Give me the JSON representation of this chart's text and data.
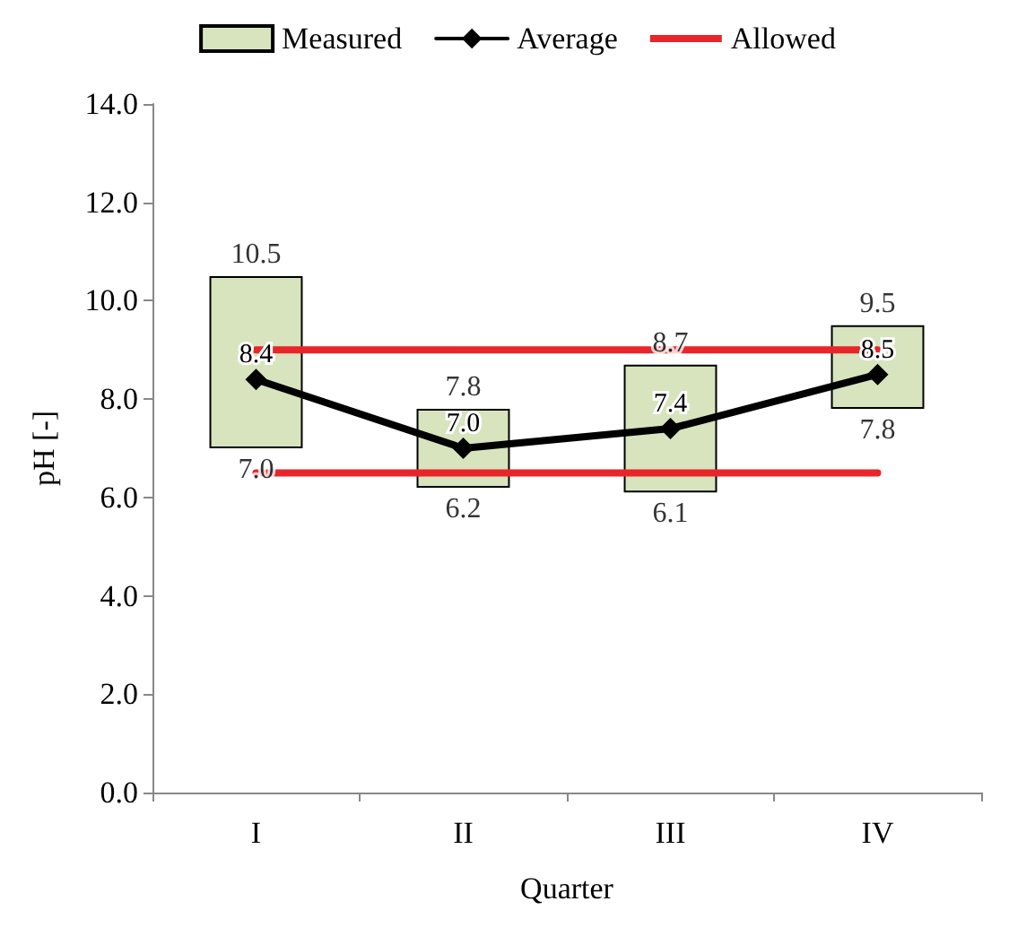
{
  "chart_data": {
    "type": "bar",
    "xlabel": "Quarter",
    "ylabel": "pH [-]",
    "categories": [
      "I",
      "II",
      "III",
      "IV"
    ],
    "ylim": [
      0,
      14
    ],
    "yticks": [
      {
        "value": 0,
        "label": "0.0"
      },
      {
        "value": 2,
        "label": "2.0"
      },
      {
        "value": 4,
        "label": "4.0"
      },
      {
        "value": 6,
        "label": "6.0"
      },
      {
        "value": 8,
        "label": "8.0"
      },
      {
        "value": 10,
        "label": "10.0"
      },
      {
        "value": 12,
        "label": "12.0"
      },
      {
        "value": 14,
        "label": "14.0"
      }
    ],
    "grid": false,
    "legend": "top",
    "series": [
      {
        "name": "Measured",
        "color": "#d7e4bd",
        "base": [
          7.0,
          6.2,
          6.1,
          7.8
        ],
        "values": [
          3.5,
          1.6,
          2.6,
          1.7
        ]
      },
      {
        "name": "Average",
        "type": "line",
        "color": "#000000",
        "marker": "diamond",
        "values": [
          8.4,
          7.0,
          7.4,
          8.5
        ],
        "value_labels": [
          "8.4",
          "7.0",
          "7.4",
          "8.5"
        ]
      },
      {
        "name": "Allowed",
        "type": "line",
        "color": "#e8262a",
        "marker": "none",
        "values": [
          9.0,
          9.0,
          9.0,
          9.0
        ]
      },
      {
        "type": "line",
        "color": "#e8262a",
        "marker": "none",
        "values": [
          6.5,
          6.5,
          6.5,
          6.5
        ]
      }
    ],
    "annotations": [
      {
        "text": "10.5",
        "x": "I",
        "y": 10.5
      },
      {
        "text": "7.0",
        "x": "I",
        "y": 7.0
      },
      {
        "text": "7.8",
        "x": "II",
        "y": 7.8
      },
      {
        "text": "6.2",
        "x": "II",
        "y": 6.2
      },
      {
        "text": "8.7",
        "x": "III",
        "y": 8.7
      },
      {
        "text": "6.1",
        "x": "III",
        "y": 6.1
      },
      {
        "text": "9.5",
        "x": "IV",
        "y": 9.5
      },
      {
        "text": "7.8",
        "x": "IV",
        "y": 7.8
      }
    ]
  }
}
